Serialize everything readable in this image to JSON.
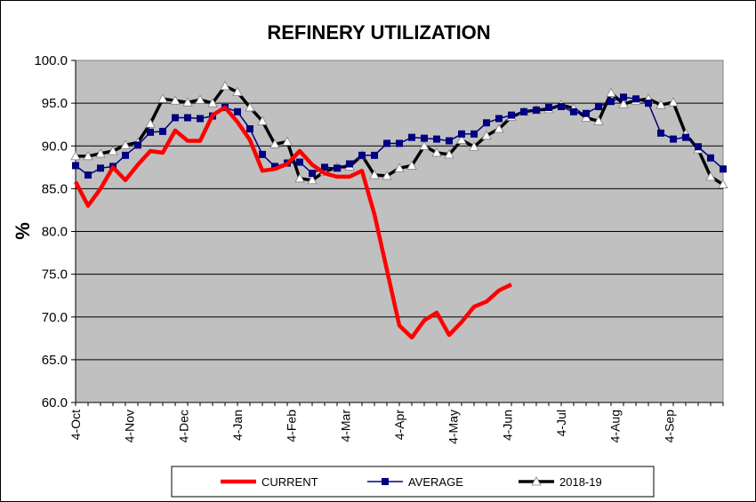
{
  "chart_data": {
    "type": "line",
    "title": "REFINERY UTILIZATION",
    "xlabel": "",
    "ylabel": "%",
    "ylim": [
      60.0,
      100.0
    ],
    "yticks": [
      "60.0",
      "65.0",
      "70.0",
      "75.0",
      "80.0",
      "85.0",
      "90.0",
      "95.0",
      "100.0"
    ],
    "xticks": [
      "4-Oct",
      "4-Nov",
      "4-Dec",
      "4-Jan",
      "4-Feb",
      "4-Mar",
      "4-Apr",
      "4-May",
      "4-Jun",
      "4-Jul",
      "4-Aug",
      "4-Sep"
    ],
    "grid": "horizontal",
    "legend_position": "bottom",
    "plot_background": "#c0c0c0",
    "series": [
      {
        "name": "CURRENT",
        "color": "#ff0000",
        "marker": "none",
        "values": [
          85.8,
          83.0,
          85.0,
          87.5,
          86.0,
          87.8,
          89.4,
          89.2,
          91.8,
          90.6,
          90.6,
          93.6,
          94.5,
          92.8,
          90.7,
          87.1,
          87.3,
          87.9,
          89.4,
          87.8,
          86.8,
          86.4,
          86.4,
          87.1,
          82.0,
          75.5,
          69.0,
          67.6,
          69.6,
          70.5,
          67.9,
          69.4,
          71.2,
          71.8,
          73.1,
          73.8
        ]
      },
      {
        "name": "AVERAGE",
        "color": "#000080",
        "marker": "square",
        "values": [
          87.7,
          86.6,
          87.4,
          87.6,
          88.9,
          90.1,
          91.6,
          91.7,
          93.3,
          93.3,
          93.2,
          93.5,
          94.5,
          94.0,
          92.0,
          89.0,
          87.6,
          88.0,
          88.1,
          86.8,
          87.5,
          87.4,
          87.9,
          88.9,
          88.9,
          90.3,
          90.3,
          91.0,
          90.9,
          90.8,
          90.6,
          91.4,
          91.4,
          92.7,
          93.2,
          93.6,
          94.0,
          94.2,
          94.5,
          94.6,
          94.0,
          93.8,
          94.6,
          95.2,
          95.7,
          95.5,
          95.0,
          91.5,
          90.8,
          91.0,
          89.9,
          88.6,
          87.3
        ]
      },
      {
        "name": "2018-19",
        "color": "#000000",
        "marker": "triangle",
        "values": [
          88.8,
          88.8,
          89.1,
          89.4,
          90.1,
          90.4,
          92.6,
          95.5,
          95.3,
          95.1,
          95.4,
          95.0,
          97.0,
          96.3,
          94.5,
          92.9,
          90.2,
          90.5,
          86.2,
          86.0,
          87.0,
          87.5,
          87.6,
          88.9,
          86.6,
          86.5,
          87.4,
          87.7,
          90.0,
          89.2,
          89.0,
          90.7,
          89.9,
          91.2,
          92.0,
          93.4,
          94.0,
          94.2,
          94.3,
          94.8,
          94.4,
          93.3,
          92.9,
          96.2,
          94.9,
          95.3,
          95.5,
          94.8,
          95.1,
          91.4,
          89.6,
          86.4,
          85.5
        ]
      }
    ]
  }
}
